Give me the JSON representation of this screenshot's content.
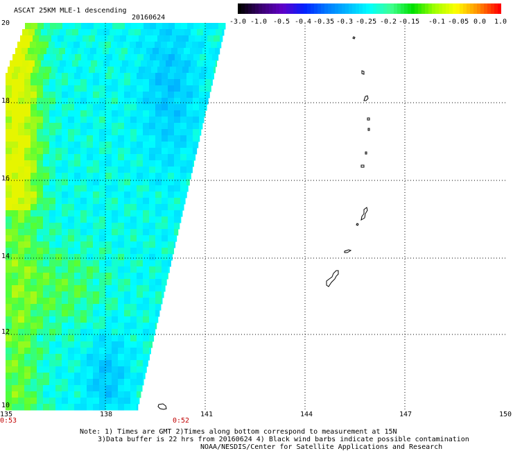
{
  "header": {
    "title": "ASCAT 25KM MLE-1 descending",
    "date": "20160624"
  },
  "colorbar": {
    "ticks": [
      "-3.0",
      "-1.0",
      "-0.5",
      "-0.4",
      "-0.35",
      "-0.3",
      "-0.25",
      "-0.2",
      "-0.15",
      "-0.1",
      "-0.05",
      "0.0",
      "1.0"
    ],
    "colors": [
      "#000000",
      "#3a0070",
      "#6000c8",
      "#0020ff",
      "#0078ff",
      "#00b8ff",
      "#00ffff",
      "#40ff90",
      "#00e000",
      "#a0ff00",
      "#ffff00",
      "#ff9000",
      "#ff0000"
    ]
  },
  "axes": {
    "lat_labels": [
      "20",
      "18",
      "16",
      "14",
      "12",
      "10"
    ],
    "lon_labels": [
      "135",
      "138",
      "141",
      "144",
      "147",
      "150"
    ],
    "times": [
      "0:53",
      "0:52"
    ]
  },
  "notes": {
    "line1": "Note: 1) Times are GMT 2)Times along bottom correspond to measurement at 15N",
    "line2": "3)Data buffer is 22 hrs from 20160624 4) Black wind barbs indicate possible contamination",
    "line3": "NOAA/NESDIS/Center for Satellite Applications and Research"
  }
}
